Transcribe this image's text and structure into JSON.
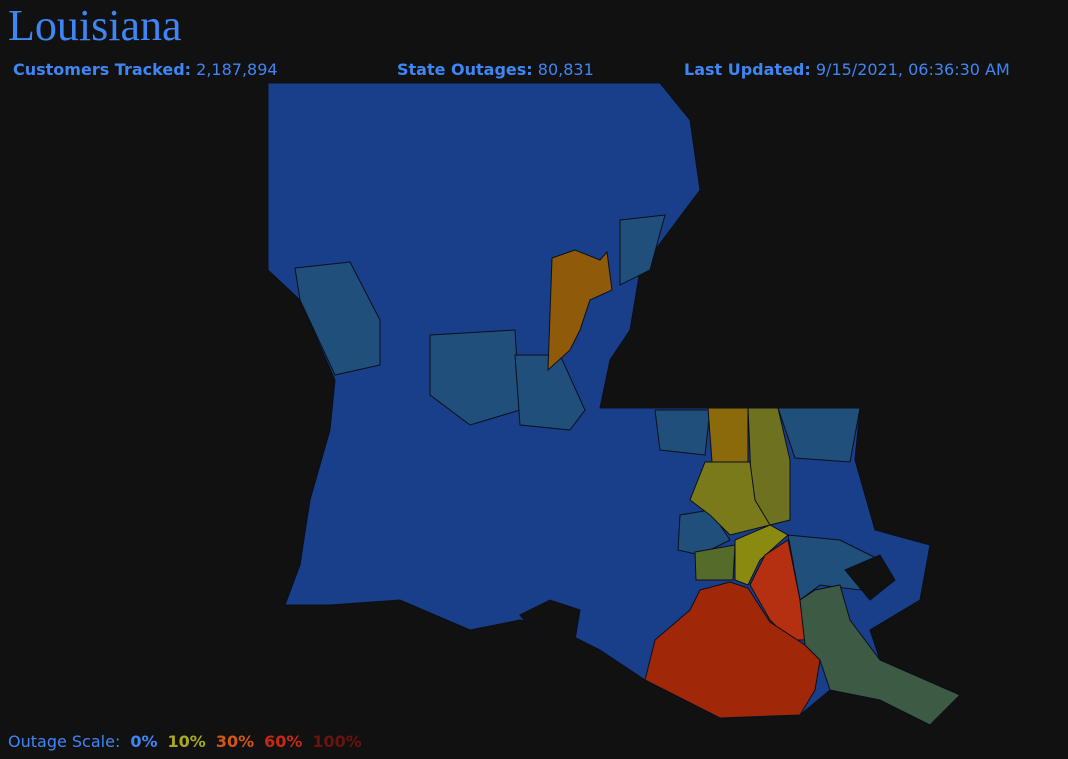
{
  "header": {
    "title": "Louisiana"
  },
  "stats": [
    {
      "label": "Customers Tracked:",
      "value": "2,187,894"
    },
    {
      "label": "State Outages:",
      "value": "80,831"
    },
    {
      "label": "Last Updated:",
      "value": "9/15/2021, 06:36:30 AM"
    }
  ],
  "legend": {
    "label": "Outage Scale:",
    "items": [
      {
        "text": "0%",
        "color": "#3f86f5"
      },
      {
        "text": "10%",
        "color": "#a8a824"
      },
      {
        "text": "30%",
        "color": "#d0561a"
      },
      {
        "text": "60%",
        "color": "#c42a12"
      },
      {
        "text": "100%",
        "color": "#6a140c"
      }
    ]
  }
}
